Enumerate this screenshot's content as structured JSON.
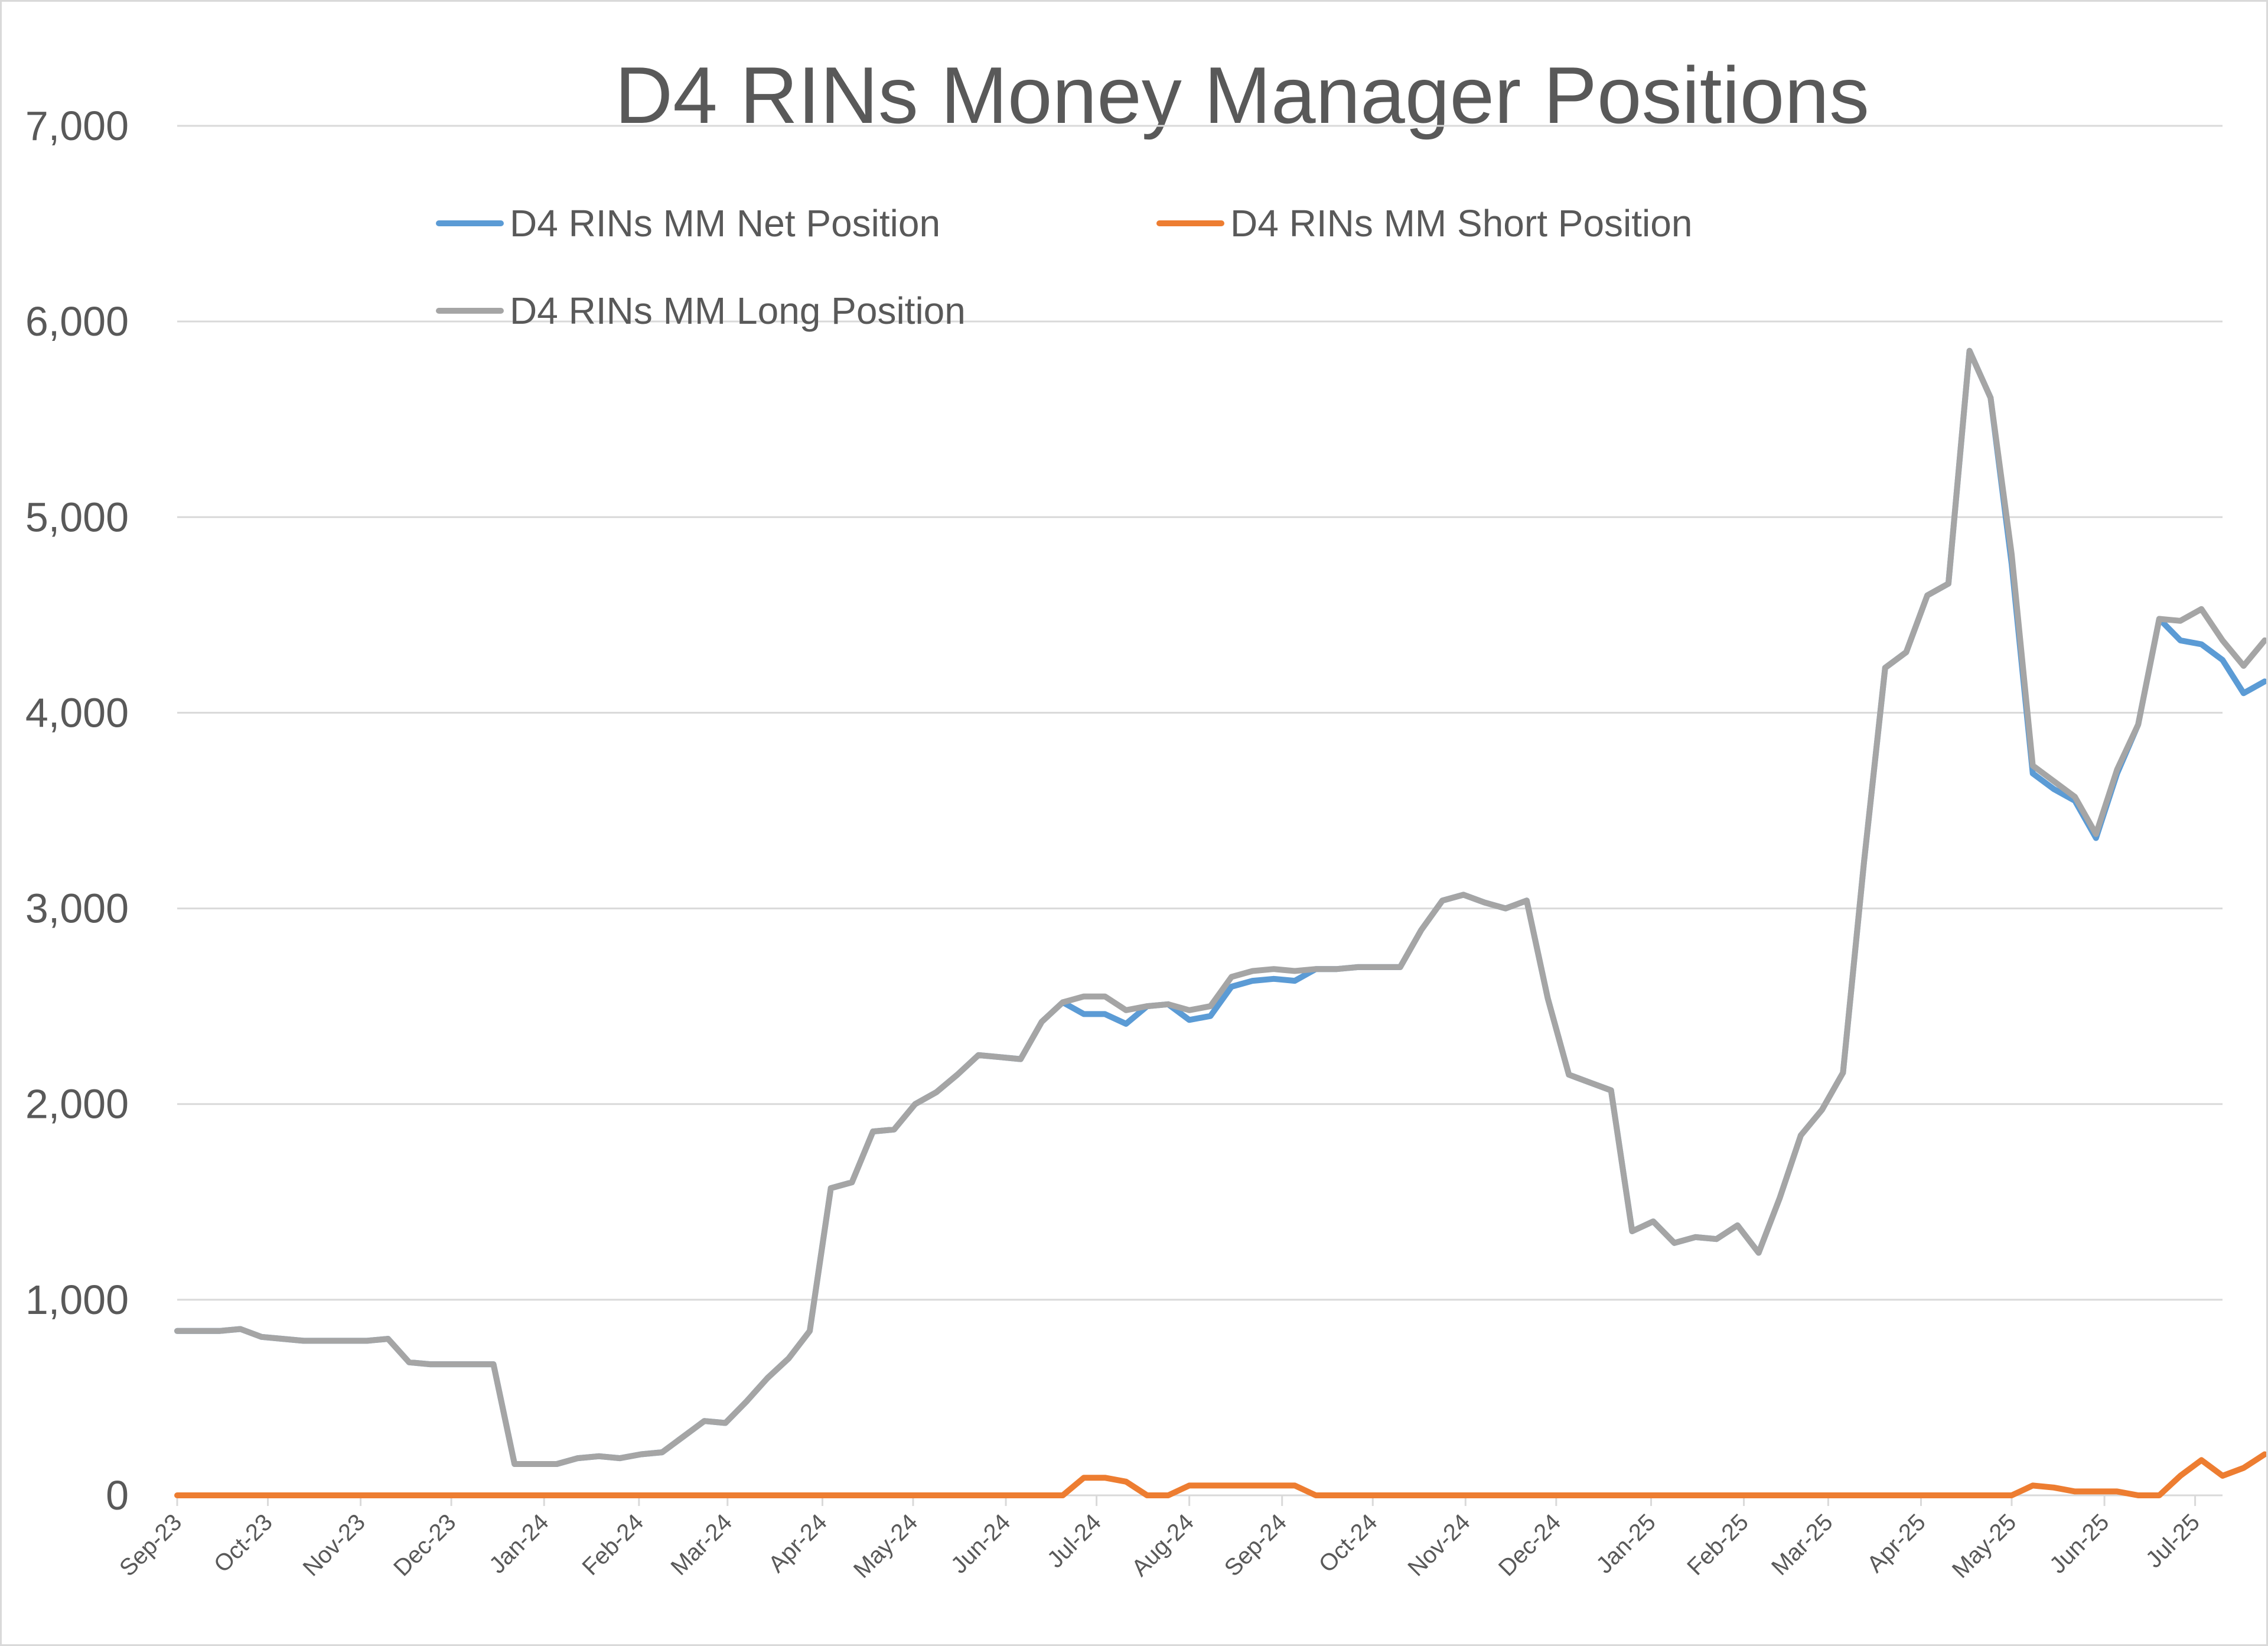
{
  "chart_data": {
    "type": "line",
    "title": "D4 RINs Money Manager Positions",
    "xlabel": "",
    "ylabel": "",
    "ylim": [
      0,
      7000
    ],
    "yticks": [
      "0",
      "1,000",
      "2,000",
      "3,000",
      "4,000",
      "5,000",
      "6,000",
      "7,000"
    ],
    "ytick_values": [
      0,
      1000,
      2000,
      3000,
      4000,
      5000,
      6000,
      7000
    ],
    "x_tick_labels": [
      "Sep-23",
      "Oct-23",
      "Nov-23",
      "Dec-23",
      "Jan-24",
      "Feb-24",
      "Mar-24",
      "Apr-24",
      "May-24",
      "Jun-24",
      "Jul-24",
      "Aug-24",
      "Sep-24",
      "Oct-24",
      "Nov-24",
      "Dec-24",
      "Jan-25",
      "Feb-25",
      "Mar-25",
      "Apr-25",
      "May-25",
      "Jun-25",
      "Jul-25"
    ],
    "x_tick_weeks": [
      0,
      4.3,
      8.7,
      13,
      17.4,
      21.9,
      26.1,
      30.6,
      34.9,
      39.3,
      43.6,
      48,
      52.4,
      56.7,
      61.1,
      65.4,
      69.9,
      74.3,
      78.3,
      82.7,
      87,
      91.4,
      95.7
    ],
    "x_range_weeks": [
      0,
      97
    ],
    "grid": true,
    "legend_position": "top",
    "series": [
      {
        "name": "D4 RINs MM Net Position",
        "color": "#5b9bd5",
        "values": [
          840,
          840,
          840,
          850,
          810,
          800,
          790,
          790,
          790,
          790,
          800,
          680,
          670,
          670,
          670,
          670,
          160,
          160,
          160,
          190,
          200,
          190,
          210,
          220,
          300,
          380,
          370,
          480,
          600,
          700,
          840,
          1570,
          1600,
          1860,
          1870,
          2000,
          2060,
          2150,
          2250,
          2240,
          2230,
          2420,
          2520,
          2460,
          2460,
          2410,
          2500,
          2510,
          2430,
          2450,
          2600,
          2630,
          2640,
          2630,
          2690,
          2690,
          2700,
          2700,
          2700,
          2890,
          3040,
          3070,
          3030,
          3000,
          3040,
          2540,
          2150,
          2110,
          2070,
          1350,
          1400,
          1290,
          1320,
          1310,
          1380,
          1240,
          1520,
          1840,
          1970,
          2160,
          3240,
          4230,
          4310,
          4600,
          4660,
          5850,
          5610,
          4760,
          3690,
          3610,
          3550,
          3360,
          3690,
          3940,
          4480,
          4370,
          4350,
          4270,
          4100,
          4160
        ]
      },
      {
        "name": "D4 RINs MM Short Position",
        "color": "#ed7d31",
        "values": [
          0,
          0,
          0,
          0,
          0,
          0,
          0,
          0,
          0,
          0,
          0,
          0,
          0,
          0,
          0,
          0,
          0,
          0,
          0,
          0,
          0,
          0,
          0,
          0,
          0,
          0,
          0,
          0,
          0,
          0,
          0,
          0,
          0,
          0,
          0,
          0,
          0,
          0,
          0,
          0,
          0,
          0,
          0,
          90,
          90,
          70,
          0,
          0,
          50,
          50,
          50,
          50,
          50,
          50,
          0,
          0,
          0,
          0,
          0,
          0,
          0,
          0,
          0,
          0,
          0,
          0,
          0,
          0,
          0,
          0,
          0,
          0,
          0,
          0,
          0,
          0,
          0,
          0,
          0,
          0,
          0,
          0,
          0,
          0,
          0,
          0,
          0,
          0,
          50,
          40,
          20,
          20,
          20,
          0,
          0,
          100,
          180,
          100,
          140,
          210
        ]
      },
      {
        "name": "D4 RINs MM Long Position",
        "color": "#a5a5a5",
        "values": [
          840,
          840,
          840,
          850,
          810,
          800,
          790,
          790,
          790,
          790,
          800,
          680,
          670,
          670,
          670,
          670,
          160,
          160,
          160,
          190,
          200,
          190,
          210,
          220,
          300,
          380,
          370,
          480,
          600,
          700,
          840,
          1570,
          1600,
          1860,
          1870,
          2000,
          2060,
          2150,
          2250,
          2240,
          2230,
          2420,
          2520,
          2550,
          2550,
          2480,
          2500,
          2510,
          2480,
          2500,
          2650,
          2680,
          2690,
          2680,
          2690,
          2690,
          2700,
          2700,
          2700,
          2890,
          3040,
          3070,
          3030,
          3000,
          3040,
          2540,
          2150,
          2110,
          2070,
          1350,
          1400,
          1290,
          1320,
          1310,
          1380,
          1240,
          1520,
          1840,
          1970,
          2160,
          3240,
          4230,
          4310,
          4600,
          4660,
          5850,
          5610,
          4810,
          3730,
          3650,
          3570,
          3380,
          3710,
          3940,
          4480,
          4470,
          4530,
          4370,
          4240,
          4370
        ]
      }
    ]
  }
}
